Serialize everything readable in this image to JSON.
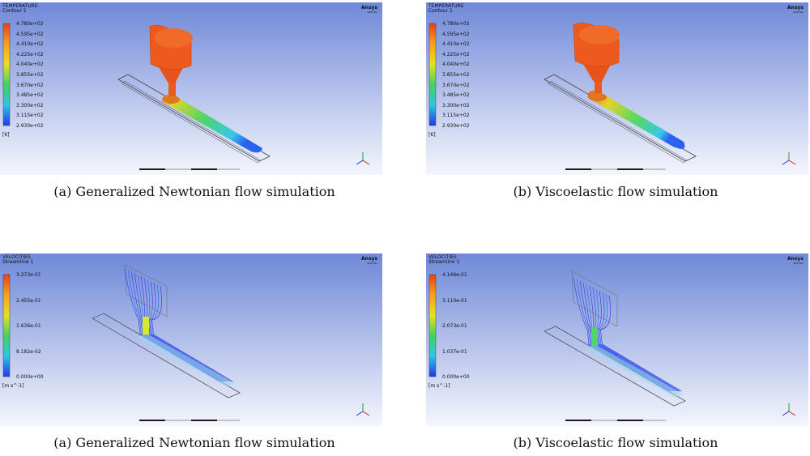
{
  "panels": [
    {
      "kind": "temperature",
      "variable": "TEMPERATURE",
      "sub": "Contour 1",
      "ticks": [
        "4.780e+02",
        "4.595e+02",
        "4.410e+02",
        "4.225e+02",
        "4.040e+02",
        "3.855e+02",
        "3.670e+02",
        "3.485e+02",
        "3.300e+02",
        "3.115e+02",
        "2.930e+02"
      ],
      "unit": "[K]",
      "logo": "Ansys",
      "logo_sub": "2023 R1",
      "caption": "(a) Generalized Newtonian flow simulation"
    },
    {
      "kind": "temperature",
      "variable": "TEMPERATURE",
      "sub": "Contour 1",
      "ticks": [
        "4.780e+02",
        "4.595e+02",
        "4.410e+02",
        "4.225e+02",
        "4.040e+02",
        "3.855e+02",
        "3.670e+02",
        "3.485e+02",
        "3.300e+02",
        "3.115e+02",
        "2.930e+02"
      ],
      "unit": "[K]",
      "logo": "Ansys",
      "logo_sub": "2023 R1",
      "caption": "(b) Viscoelastic flow simulation"
    },
    {
      "kind": "velocity",
      "variable": "VELOCITIES",
      "sub": "Streamline 1",
      "ticks": [
        "3.273e-01",
        "2.455e-01",
        "1.636e-01",
        "8.182e-02",
        "0.000e+00"
      ],
      "unit": "[m s^-1]",
      "logo": "Ansys",
      "logo_sub": "2023 R1",
      "caption": "(a) Generalized Newtonian flow simulation"
    },
    {
      "kind": "velocity",
      "variable": "VELOCITIES",
      "sub": "Streamline 1",
      "ticks": [
        "4.146e-01",
        "3.110e-01",
        "2.073e-01",
        "1.037e-01",
        "0.000e+00"
      ],
      "unit": "[m s^-1]",
      "logo": "Ansys",
      "logo_sub": "2023 R1",
      "caption": "(b) Viscoelastic flow simulation"
    }
  ],
  "colors": {
    "bg_top": "#6f88d8",
    "bg_bottom": "#f4f6fc",
    "hot": "#e8561e",
    "cold": "#2a63f0"
  }
}
